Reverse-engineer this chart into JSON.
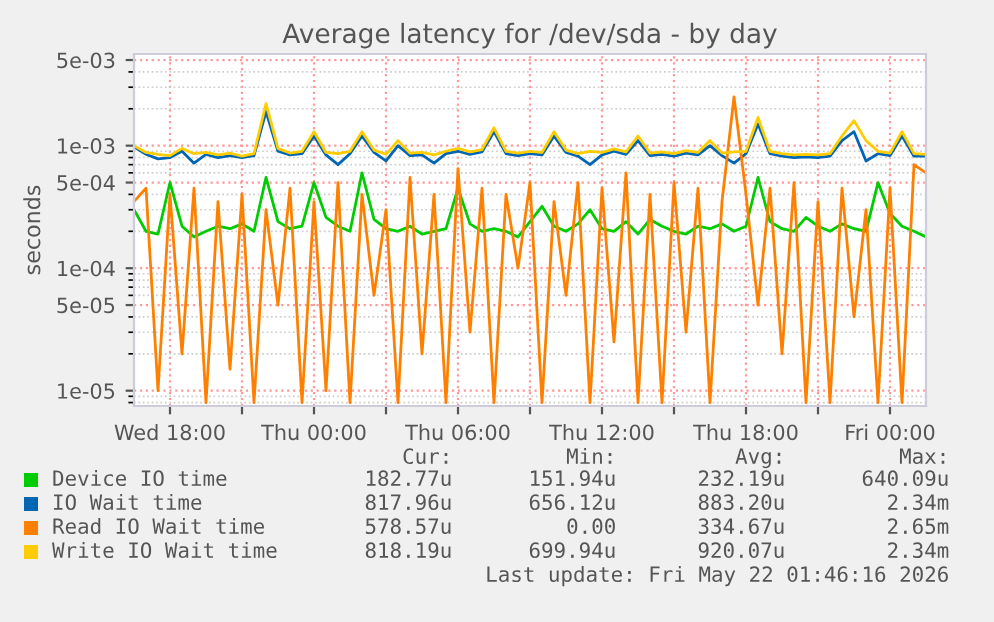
{
  "chart_data": {
    "type": "line",
    "title": "Average latency for /dev/sda - by day",
    "ylabel": "seconds",
    "log": "y",
    "grid": true,
    "legend": "bottom",
    "marker": "none",
    "line_style": "solid",
    "x": [
      "2026-05-20T16:30",
      "2026-05-20T17:00",
      "2026-05-20T17:30",
      "2026-05-20T18:00",
      "2026-05-20T18:30",
      "2026-05-20T19:00",
      "2026-05-20T19:30",
      "2026-05-20T20:00",
      "2026-05-20T20:30",
      "2026-05-20T21:00",
      "2026-05-20T21:30",
      "2026-05-20T22:00",
      "2026-05-20T22:30",
      "2026-05-20T23:00",
      "2026-05-20T23:30",
      "2026-05-21T00:00",
      "2026-05-21T00:30",
      "2026-05-21T01:00",
      "2026-05-21T01:30",
      "2026-05-21T02:00",
      "2026-05-21T02:30",
      "2026-05-21T03:00",
      "2026-05-21T03:30",
      "2026-05-21T04:00",
      "2026-05-21T04:30",
      "2026-05-21T05:00",
      "2026-05-21T05:30",
      "2026-05-21T06:00",
      "2026-05-21T06:30",
      "2026-05-21T07:00",
      "2026-05-21T07:30",
      "2026-05-21T08:00",
      "2026-05-21T08:30",
      "2026-05-21T09:00",
      "2026-05-21T09:30",
      "2026-05-21T10:00",
      "2026-05-21T10:30",
      "2026-05-21T11:00",
      "2026-05-21T11:30",
      "2026-05-21T12:00",
      "2026-05-21T12:30",
      "2026-05-21T13:00",
      "2026-05-21T13:30",
      "2026-05-21T14:00",
      "2026-05-21T14:30",
      "2026-05-21T15:00",
      "2026-05-21T15:30",
      "2026-05-21T16:00",
      "2026-05-21T16:30",
      "2026-05-21T17:00",
      "2026-05-21T17:30",
      "2026-05-21T18:00",
      "2026-05-21T18:30",
      "2026-05-21T19:00",
      "2026-05-21T19:30",
      "2026-05-21T20:00",
      "2026-05-21T20:30",
      "2026-05-21T21:00",
      "2026-05-21T21:30",
      "2026-05-21T22:00",
      "2026-05-21T22:30",
      "2026-05-21T23:00",
      "2026-05-21T23:30",
      "2026-05-22T00:00",
      "2026-05-22T00:30",
      "2026-05-22T01:00",
      "2026-05-22T01:30"
    ],
    "xlim": [
      "2026-05-20T16:30",
      "2026-05-22T01:30"
    ],
    "xticks": [
      {
        "value": "2026-05-20T18:00",
        "label": "Wed 18:00"
      },
      {
        "value": "2026-05-20T21:00",
        "label": null
      },
      {
        "value": "2026-05-21T00:00",
        "label": "Thu 00:00"
      },
      {
        "value": "2026-05-21T03:00",
        "label": null
      },
      {
        "value": "2026-05-21T06:00",
        "label": "Thu 06:00"
      },
      {
        "value": "2026-05-21T09:00",
        "label": null
      },
      {
        "value": "2026-05-21T12:00",
        "label": "Thu 12:00"
      },
      {
        "value": "2026-05-21T15:00",
        "label": null
      },
      {
        "value": "2026-05-21T18:00",
        "label": "Thu 18:00"
      },
      {
        "value": "2026-05-21T21:00",
        "label": null
      },
      {
        "value": "2026-05-22T00:00",
        "label": "Fri 00:00"
      }
    ],
    "ylim": [
      7.5e-06,
      0.0056
    ],
    "yticks": [
      {
        "value": 1e-05,
        "label": "1e-05"
      },
      {
        "value": 5e-05,
        "label": "5e-05"
      },
      {
        "value": 0.0001,
        "label": "1e-04"
      },
      {
        "value": 0.0005,
        "label": "5e-04"
      },
      {
        "value": 0.001,
        "label": "1e-03"
      },
      {
        "value": 0.005,
        "label": "5e-03"
      }
    ],
    "series": [
      {
        "name": "Device IO time",
        "color": "#00cc00",
        "values": [
          0.0003,
          0.0002,
          0.00019,
          0.0005,
          0.00022,
          0.00018,
          0.0002,
          0.00022,
          0.00021,
          0.00023,
          0.0002,
          0.00055,
          0.00024,
          0.00021,
          0.00022,
          0.0005,
          0.00026,
          0.00022,
          0.0002,
          0.0006,
          0.00025,
          0.00021,
          0.0002,
          0.00022,
          0.00019,
          0.0002,
          0.00021,
          0.00045,
          0.00023,
          0.0002,
          0.00021,
          0.0002,
          0.00018,
          0.00024,
          0.00032,
          0.00022,
          0.0002,
          0.00023,
          0.0003,
          0.00021,
          0.0002,
          0.00024,
          0.00019,
          0.00025,
          0.00022,
          0.0002,
          0.00019,
          0.00022,
          0.00021,
          0.00023,
          0.0002,
          0.00022,
          0.00055,
          0.00024,
          0.00021,
          0.0002,
          0.00026,
          0.00022,
          0.0002,
          0.00023,
          0.00021,
          0.0002,
          0.0005,
          0.00028,
          0.00022,
          0.0002,
          0.00018
        ]
      },
      {
        "name": "IO Wait time",
        "color": "#0066b3",
        "values": [
          0.00098,
          0.00085,
          0.00078,
          0.0008,
          0.0009,
          0.00072,
          0.00085,
          0.0008,
          0.00083,
          0.0008,
          0.00083,
          0.0019,
          0.0009,
          0.00084,
          0.00086,
          0.0012,
          0.00084,
          0.0007,
          0.00086,
          0.0012,
          0.00088,
          0.00075,
          0.001,
          0.00083,
          0.00084,
          0.00072,
          0.00086,
          0.0009,
          0.00085,
          0.00089,
          0.0013,
          0.00086,
          0.00083,
          0.00086,
          0.00084,
          0.0012,
          0.00088,
          0.00082,
          0.0007,
          0.00084,
          0.0009,
          0.00085,
          0.0011,
          0.00083,
          0.00085,
          0.00082,
          0.00087,
          0.00084,
          0.001,
          0.00083,
          0.00072,
          0.00086,
          0.0015,
          0.00086,
          0.00082,
          0.0008,
          0.00081,
          0.0008,
          0.00082,
          0.0011,
          0.0013,
          0.00075,
          0.00086,
          0.00083,
          0.0012,
          0.00082,
          0.00082
        ]
      },
      {
        "name": "Read IO Wait time",
        "color": "#ff8000",
        "values": [
          0.00035,
          0.00045,
          1e-05,
          0.0004,
          2e-05,
          0.00045,
          8e-06,
          0.00035,
          1.5e-05,
          0.0004,
          8e-06,
          0.0003,
          5e-05,
          0.00045,
          8e-06,
          0.00035,
          1e-05,
          0.0005,
          8e-06,
          0.0004,
          6e-05,
          0.0003,
          8e-06,
          0.00055,
          2e-05,
          0.0004,
          8e-06,
          0.00065,
          3e-05,
          0.00045,
          8e-06,
          0.0004,
          0.0001,
          0.0005,
          8e-06,
          0.00035,
          6e-05,
          0.0005,
          8e-06,
          0.00045,
          2.5e-05,
          0.0006,
          8e-06,
          0.0004,
          8e-06,
          0.0005,
          3e-05,
          0.00045,
          8e-06,
          0.00035,
          0.0025,
          0.0004,
          5e-05,
          0.00045,
          2e-05,
          0.0005,
          8e-06,
          0.00035,
          8e-06,
          0.00045,
          4e-05,
          0.0003,
          8e-06,
          0.00045,
          8e-06,
          0.0007,
          0.0006
        ]
      },
      {
        "name": "Write IO Wait time",
        "color": "#ffcc00",
        "values": [
          0.001,
          0.00088,
          0.00085,
          0.00083,
          0.00095,
          0.00086,
          0.00088,
          0.00084,
          0.00087,
          0.00082,
          0.00086,
          0.0022,
          0.00095,
          0.00087,
          0.0009,
          0.0013,
          0.00088,
          0.00086,
          0.0009,
          0.0013,
          0.00092,
          0.00085,
          0.0011,
          0.00087,
          0.00088,
          0.00084,
          0.0009,
          0.00095,
          0.00089,
          0.00093,
          0.0014,
          0.0009,
          0.00087,
          0.0009,
          0.00088,
          0.0013,
          0.00092,
          0.00086,
          0.0009,
          0.00088,
          0.00094,
          0.00089,
          0.0012,
          0.00087,
          0.00089,
          0.00086,
          0.00091,
          0.00088,
          0.0011,
          0.00087,
          0.00089,
          0.0009,
          0.0017,
          0.0009,
          0.00086,
          0.00084,
          0.00085,
          0.00084,
          0.00086,
          0.0012,
          0.0016,
          0.0011,
          0.0009,
          0.00087,
          0.0013,
          0.00086,
          0.00085
        ]
      }
    ],
    "annotations": [
      "Cur:",
      "Min:",
      "Avg:",
      "Max:",
      "182.77u",
      "151.94u",
      "232.19u",
      "640.09u",
      "817.96u",
      "656.12u",
      "883.20u",
      "2.34m",
      "578.57u",
      "0.00",
      "334.67u",
      "2.65m",
      "818.19u",
      "699.94u",
      "920.07u",
      "2.34m",
      "Last update: Fri May 22 01:46:16 2026"
    ]
  }
}
